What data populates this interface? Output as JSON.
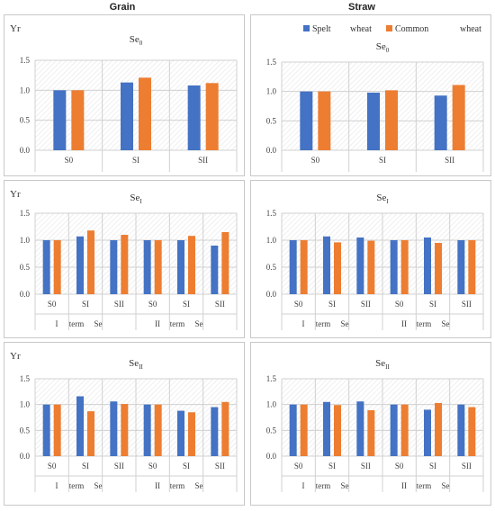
{
  "column_titles": [
    "Grain",
    "Straw"
  ],
  "legend": {
    "items": [
      {
        "label": "Spelt",
        "suffix": "wheat",
        "color": "#4472c4"
      },
      {
        "label": "Common",
        "suffix": "wheat",
        "color": "#ed7d31"
      }
    ]
  },
  "colors": {
    "spelt": "#4472c4",
    "common": "#ed7d31",
    "grid": "#d0d0d0",
    "axis_text": "#404040"
  },
  "chart_data": [
    {
      "type": "bar",
      "panel": "grain-se0",
      "ylabel": "Yr",
      "title": "Se",
      "title_sub": "0",
      "categories": [
        "S0",
        "SI",
        "SII"
      ],
      "groups": [],
      "series": [
        {
          "name": "Spelt wheat",
          "values": [
            1.0,
            1.13,
            1.08
          ]
        },
        {
          "name": "Common wheat",
          "values": [
            1.0,
            1.21,
            1.12
          ]
        }
      ],
      "yticks": [
        "0.0",
        "0.5",
        "1.0",
        "1.5"
      ],
      "ylim": [
        0,
        1.5
      ]
    },
    {
      "type": "bar",
      "panel": "straw-se0",
      "ylabel": "",
      "title": "Se",
      "title_sub": "0",
      "categories": [
        "S0",
        "SI",
        "SII"
      ],
      "groups": [],
      "series": [
        {
          "name": "Spelt wheat",
          "values": [
            1.0,
            0.98,
            0.93
          ]
        },
        {
          "name": "Common wheat",
          "values": [
            1.0,
            1.02,
            1.11
          ]
        }
      ],
      "yticks": [
        "0.0",
        "0.5",
        "1.0",
        "1.5"
      ],
      "ylim": [
        0,
        1.5
      ]
    },
    {
      "type": "bar",
      "panel": "grain-se1",
      "ylabel": "Yr",
      "title": "Se",
      "title_sub": "I",
      "categories": [
        "S0",
        "SI",
        "SII",
        "S0",
        "SI",
        "SII"
      ],
      "groups": [
        {
          "roman": "I",
          "term": "term",
          "se": "Se"
        },
        {
          "roman": "II",
          "term": "term",
          "se": "Se"
        }
      ],
      "series": [
        {
          "name": "Spelt wheat",
          "values": [
            1.0,
            1.07,
            1.0,
            1.0,
            1.0,
            0.9
          ]
        },
        {
          "name": "Common wheat",
          "values": [
            1.0,
            1.18,
            1.1,
            1.0,
            1.08,
            1.15
          ]
        }
      ],
      "yticks": [
        "0.0",
        "0.5",
        "1.0",
        "1.5"
      ],
      "ylim": [
        0,
        1.5
      ]
    },
    {
      "type": "bar",
      "panel": "straw-se1",
      "ylabel": "",
      "title": "Se",
      "title_sub": "I",
      "categories": [
        "S0",
        "SI",
        "SII",
        "S0",
        "SI",
        "SII"
      ],
      "groups": [
        {
          "roman": "I",
          "term": "term",
          "se": "Se"
        },
        {
          "roman": "II",
          "term": "term",
          "se": "Se"
        }
      ],
      "series": [
        {
          "name": "Spelt wheat",
          "values": [
            1.0,
            1.07,
            1.05,
            1.0,
            1.05,
            1.0
          ]
        },
        {
          "name": "Common wheat",
          "values": [
            1.0,
            0.96,
            0.99,
            1.0,
            0.95,
            1.0
          ]
        }
      ],
      "yticks": [
        "0.0",
        "0.5",
        "1.0",
        "1.5"
      ],
      "ylim": [
        0,
        1.5
      ]
    },
    {
      "type": "bar",
      "panel": "grain-se2",
      "ylabel": "Yr",
      "title": "Se",
      "title_sub": "II",
      "categories": [
        "S0",
        "SI",
        "SII",
        "S0",
        "SI",
        "SII"
      ],
      "groups": [
        {
          "roman": "I",
          "term": "term",
          "se": "Se"
        },
        {
          "roman": "II",
          "term": "term",
          "se": "Se"
        }
      ],
      "series": [
        {
          "name": "Spelt wheat",
          "values": [
            1.0,
            1.16,
            1.06,
            1.0,
            0.88,
            0.95
          ]
        },
        {
          "name": "Common wheat",
          "values": [
            1.0,
            0.87,
            1.01,
            1.0,
            0.85,
            1.05
          ]
        }
      ],
      "yticks": [
        "0.0",
        "0.5",
        "1.0",
        "1.5"
      ],
      "ylim": [
        0,
        1.5
      ]
    },
    {
      "type": "bar",
      "panel": "straw-se2",
      "ylabel": "",
      "title": "Se",
      "title_sub": "II",
      "categories": [
        "S0",
        "SI",
        "SII",
        "S0",
        "SI",
        "SII"
      ],
      "groups": [
        {
          "roman": "I",
          "term": "term",
          "se": "Se"
        },
        {
          "roman": "II",
          "term": "term",
          "se": "Se"
        }
      ],
      "series": [
        {
          "name": "Spelt wheat",
          "values": [
            1.0,
            1.05,
            1.06,
            1.0,
            0.9,
            1.0
          ]
        },
        {
          "name": "Common wheat",
          "values": [
            1.0,
            0.99,
            0.89,
            1.0,
            1.03,
            0.95
          ]
        }
      ],
      "yticks": [
        "0.0",
        "0.5",
        "1.0",
        "1.5"
      ],
      "ylim": [
        0,
        1.5
      ]
    }
  ]
}
